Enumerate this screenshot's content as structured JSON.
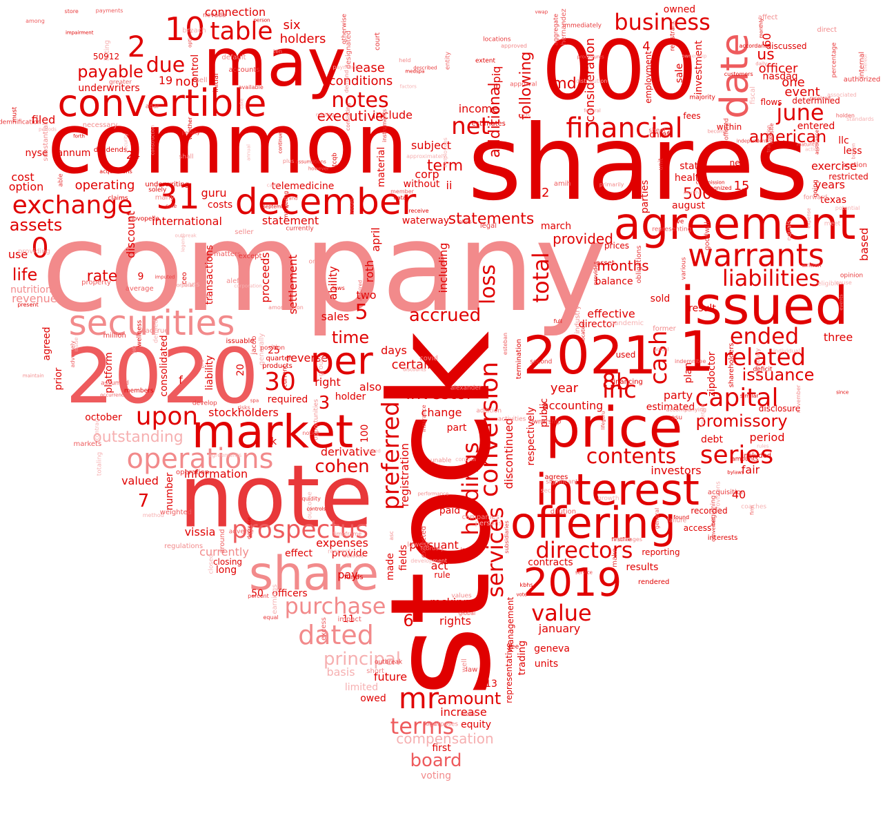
{
  "colors": {
    "primary": "#e00000",
    "secondary": "#e8383a",
    "medium": "#ee5b5d",
    "light": "#f28a8b",
    "pale": "#f6b0b1",
    "background": "#ffffff"
  },
  "words": {
    "company": "company",
    "stock": "stock",
    "shares": "shares",
    "common": "common",
    "note": "note",
    "w2020": "2020",
    "w000": "000",
    "may": "may",
    "issued": "issued",
    "agreement": "agreement",
    "price": "price",
    "w2021": "2021",
    "w1": "1",
    "securities": "securities",
    "convertible": "convertible",
    "market": "market",
    "share": "share",
    "offering": "offering",
    "interest": "interest",
    "december": "december",
    "date": "date",
    "per": "per",
    "warrants": "warrants",
    "financial": "financial",
    "w2019": "2019",
    "exchange": "exchange",
    "operations": "operations",
    "prospectus": "prospectus",
    "conversion": "conversion",
    "preferred": "preferred",
    "liabilities": "liabilities",
    "w31": "31",
    "table": "table",
    "w10": "10",
    "directors": "directors",
    "capital": "capital",
    "business": "business",
    "related": "related",
    "ended": "ended",
    "june": "june",
    "services": "services",
    "holdings": "holdings",
    "notes": "notes",
    "purchase": "purchase",
    "dated": "dated",
    "terms": "terms",
    "mr": "mr",
    "value": "value",
    "series": "series",
    "contents": "contents",
    "inc": "inc",
    "cash": "cash",
    "net": "net",
    "upon": "upon",
    "w30": "30",
    "w8b": "8b",
    "total": "total",
    "w0": "0",
    "w2": "2",
    "due": "due",
    "outstanding": "outstanding",
    "issuance": "issuance",
    "american": "american",
    "promissory": "promissory",
    "investor": "investor",
    "accrued": "accrued",
    "principal": "principal",
    "board": "board",
    "amount": "amount",
    "compensation": "compensation",
    "loss": "loss",
    "cohen": "cohen",
    "time": "time",
    "payable": "payable",
    "assets": "assets",
    "life": "life",
    "rate": "rate",
    "executive": "executive",
    "w5": "5",
    "w3": "3",
    "w6": "6",
    "w7": "7",
    "additional": "additional",
    "following": "following",
    "consideration": "consideration",
    "statements": "statements",
    "provided": "provided",
    "months": "months",
    "w500": "500",
    "w15": "15",
    "us": "us",
    "officer": "officer",
    "one": "one",
    "event": "event",
    "w12": "12",
    "w4": "4",
    "w60": "60",
    "nasdaq": "nasdaq",
    "md": "md",
    "epiq": "epiq",
    "income": "income",
    "term": "term",
    "corp": "corp",
    "ii": "ii",
    "subject": "subject",
    "conditions": "conditions",
    "lease": "lease",
    "include": "include",
    "holders": "holders",
    "six": "six",
    "non": "non",
    "connection": "connection",
    "underwriters": "underwriters",
    "w50912": "50912",
    "w19": "19",
    "control": "control",
    "w24": "24",
    "annum": "annum",
    "operating": "operating",
    "cost": "cost",
    "option": "option",
    "use": "use",
    "filed": "filed",
    "nyse": "nyse",
    "international": "international",
    "guru": "guru",
    "costs": "costs",
    "statement": "statement",
    "telemedicine": "telemedicine",
    "discount": "discount",
    "revenues": "revenues",
    "nutrition": "nutrition",
    "transactions": "transactions",
    "proceeds": "proceeds",
    "settlement": "settlement",
    "ability": "ability",
    "roth": "roth",
    "april": "april",
    "two": "two",
    "sales": "sales",
    "days": "days",
    "certain": "certain",
    "including": "including",
    "waterway": "waterway",
    "without": "without",
    "material": "material",
    "reverse": "reverse",
    "right": "right",
    "also": "also",
    "holder": "holder",
    "required": "required",
    "october": "october",
    "stockholders": "stockholders",
    "derivative": "derivative",
    "information": "information",
    "k": "k",
    "w100": "100",
    "change": "change",
    "part": "part",
    "valued": "valued",
    "vissia": "vissia",
    "number": "number",
    "consolidated": "consolidated",
    "liability": "liability",
    "platform": "platform",
    "prior": "prior",
    "agreed": "agreed",
    "f": "f",
    "w20": "20",
    "w25": "25",
    "w9": "9",
    "currently": "currently",
    "effect": "effect",
    "provide": "provide",
    "expenses": "expenses",
    "pursuant": "pursuant",
    "act": "act",
    "rule": "rule",
    "paid": "paid",
    "made": "made",
    "fields": "fields",
    "registration": "registration",
    "officers": "officers",
    "w50": "50",
    "w11": "11",
    "pay": "pay",
    "long": "long",
    "closing": "closing",
    "mckinney": "mckinney",
    "rights": "rights",
    "future": "future",
    "owed": "owed",
    "increase": "increase",
    "equity": "equity",
    "first": "first",
    "voting": "voting",
    "basis": "basis",
    "limited": "limited",
    "w13": "13",
    "trading": "trading",
    "management": "management",
    "representative": "representative",
    "discontinued": "discontinued",
    "respectively": "respectively",
    "public": "public",
    "year": "year",
    "accounting": "accounting",
    "party": "party",
    "estimated": "estimated",
    "plan": "plan",
    "zipdoctor": "zipdoctor",
    "debt": "debt",
    "period": "period",
    "fair": "fair",
    "investors": "investors",
    "w40": "40",
    "recorded": "recorded",
    "access": "access",
    "results": "results",
    "reporting": "reporting",
    "contracts": "contracts",
    "january": "january",
    "geneva": "geneva",
    "units": "units",
    "effective": "effective",
    "director": "director",
    "balance": "balance",
    "prices": "prices",
    "march": "march",
    "parties": "parties",
    "health": "health",
    "state": "state",
    "august": "august",
    "years": "years",
    "exercise": "exercise",
    "texas": "texas",
    "based": "based",
    "three": "three",
    "result": "result",
    "sold": "sold",
    "used": "used",
    "disclosure": "disclosure",
    "issuable": "issuable",
    "quarter": "quarter",
    "products": "products",
    "entered": "entered",
    "llc": "llc",
    "less": "less",
    "restricted": "restricted",
    "flows": "flows",
    "determined": "determined",
    "discussed": "discussed",
    "owned": "owned",
    "sale": "sale",
    "investment": "investment",
    "fees": "fees",
    "chief": "chief",
    "within": "within",
    "employment": "employment",
    "new": "new",
    "small": [
      "activities",
      "lifeguru",
      "firstfire",
      "shareholders",
      "majority",
      "risks",
      "persons",
      "person",
      "forward",
      "fee",
      "accounts",
      "commission",
      "average",
      "laws",
      "actual",
      "global",
      "nevada",
      "approval",
      "greater",
      "found",
      "held",
      "entity",
      "direct",
      "ownership",
      "sell",
      "closed",
      "default",
      "assurance",
      "data",
      "ceo",
      "daily",
      "amortization",
      "changes",
      "designated",
      "accordance",
      "lowest",
      "immediately",
      "construction",
      "forth",
      "indemnification",
      "respect",
      "location",
      "opportunities",
      "demand",
      "method",
      "values",
      "percentage",
      "assumptions",
      "esteban",
      "industry",
      "potential",
      "provisions",
      "periods",
      "adverse",
      "shall",
      "rendered",
      "action",
      "losses",
      "written",
      "ten",
      "legend",
      "sole",
      "coaches",
      "around",
      "dividends",
      "opinion",
      "group",
      "plus",
      "website",
      "payment",
      "affect",
      "discounts",
      "pandemic",
      "million",
      "distribution",
      "provides",
      "kbhs",
      "amounts",
      "generally",
      "growth",
      "however",
      "instruments",
      "initial",
      "short",
      "companies",
      "annual",
      "maturity",
      "regulations",
      "substantial",
      "included",
      "alexander",
      "weighted",
      "authorized",
      "hernandez",
      "pro",
      "job",
      "sec",
      "necessary",
      "addition",
      "liquidity",
      "percent",
      "medspa",
      "legal",
      "purposes",
      "vote",
      "standards",
      "procedures",
      "order",
      "month",
      "equals",
      "impairment",
      "aggregate",
      "assumed",
      "receive",
      "bowen",
      "member",
      "holden",
      "fund",
      "factors",
      "cause",
      "imputed",
      "performance",
      "transaction",
      "contain",
      "able",
      "vwap",
      "impact",
      "obligations",
      "acquired",
      "thereof",
      "believes",
      "become",
      "former",
      "unable",
      "goodwill",
      "many",
      "employees",
      "acquisitions",
      "property",
      "november",
      "associated",
      "events",
      "issue",
      "rules",
      "interests",
      "revenue",
      "service",
      "options",
      "consisting",
      "monthly",
      "plans",
      "since",
      "whether",
      "received",
      "rodriguez",
      "amih",
      "wellness",
      "earnings",
      "contract",
      "breach",
      "continue",
      "approximately",
      "corporation",
      "representing",
      "registrant",
      "adversely",
      "indemnitee",
      "position",
      "develop",
      "rent",
      "outbreak",
      "form",
      "must",
      "relating",
      "significant",
      "current",
      "otcqb",
      "covid",
      "recognized",
      "sheet",
      "excess",
      "matters",
      "united",
      "termination",
      "members",
      "corporate",
      "accompanying",
      "court",
      "extent",
      "maintain",
      "claims",
      "individual",
      "except",
      "going",
      "online",
      "accrue",
      "firm",
      "otherwise",
      "september",
      "development",
      "independent",
      "federal",
      "customers",
      "among",
      "funds",
      "decrease",
      "spa",
      "deficit",
      "estimates",
      "expense",
      "marketing",
      "converted",
      "full",
      "locations",
      "unit",
      "dilution",
      "available",
      "listing",
      "brand",
      "asc",
      "primarily",
      "solely",
      "security",
      "financing",
      "underwriting",
      "second",
      "adar",
      "loans",
      "failure",
      "bylaws",
      "section",
      "store",
      "markets",
      "general",
      "insurance",
      "outcome",
      "law",
      "july",
      "february",
      "five",
      "fiscal",
      "operation",
      "internal",
      "defined",
      "asset",
      "equal",
      "incurred",
      "meet",
      "providing",
      "jacob",
      "acquisition",
      "beginning",
      "occurrence",
      "currently",
      "various",
      "eligible",
      "present",
      "approved",
      "offered",
      "payments",
      "notice",
      "asu",
      "make",
      "similar",
      "care",
      "alef",
      "outbreak",
      "well",
      "take",
      "gsfs",
      "agrees",
      "controls",
      "described",
      "totaling",
      "timeframe",
      "penalty",
      "expected",
      "ownership",
      "seller",
      "subsidiaries",
      "subsidiary",
      "agreements",
      "novopelle"
    ]
  }
}
